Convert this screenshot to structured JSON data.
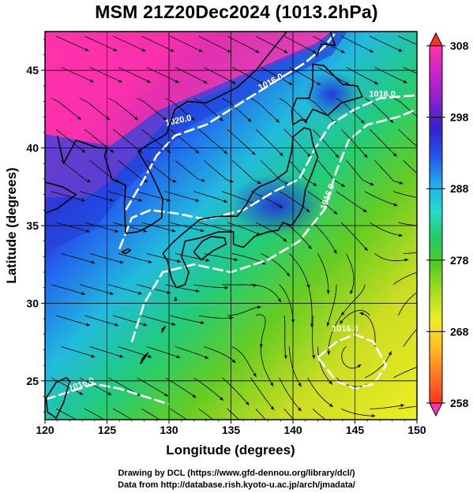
{
  "title": "MSM 21Z20Dec2024 (1013.2hPa)",
  "credits": {
    "line1": "Drawing by DCL (https://www.gfd-dennou.org/library/dcl/)",
    "line2": "Data from http://database.rish.kyoto-u.ac.jp/arch/jmadata/"
  },
  "map": {
    "xlabel": "Longitude (degrees)",
    "ylabel": "Latitude  (degrees)",
    "xlim": [
      120,
      150
    ],
    "ylim": [
      22.5,
      47.5
    ],
    "xticks": [
      "120",
      "125",
      "130",
      "135",
      "140",
      "145",
      "150"
    ],
    "yticks": [
      "25",
      "30",
      "35",
      "40",
      "45"
    ],
    "contours": [
      {
        "label": "1020.0",
        "lon": 130.8,
        "lat": 41.6,
        "angle": -12
      },
      {
        "label": "1016.0",
        "lon": 138.3,
        "lat": 44.1,
        "angle": -28
      },
      {
        "label": "1016.0",
        "lon": 147.2,
        "lat": 43.3,
        "angle": 0
      },
      {
        "label": "1016.0",
        "lon": 143.0,
        "lat": 36.8,
        "angle": -70
      },
      {
        "label": "1016.0",
        "lon": 123.0,
        "lat": 24.6,
        "angle": -20
      },
      {
        "label": "1016.0",
        "lon": 144.2,
        "lat": 28.2,
        "angle": 0
      }
    ]
  },
  "colorbar": {
    "min": 258,
    "max": 308,
    "ticks": [
      "308",
      "298",
      "288",
      "278",
      "268",
      "258"
    ],
    "colors": [
      "#ff33aa",
      "#cc22cc",
      "#8822cc",
      "#3322cc",
      "#2255ee",
      "#22aaee",
      "#22ddcc",
      "#22cc66",
      "#55cc22",
      "#aadd22",
      "#eeee22",
      "#ffbb22",
      "#ff7722",
      "#ff3322"
    ]
  }
}
